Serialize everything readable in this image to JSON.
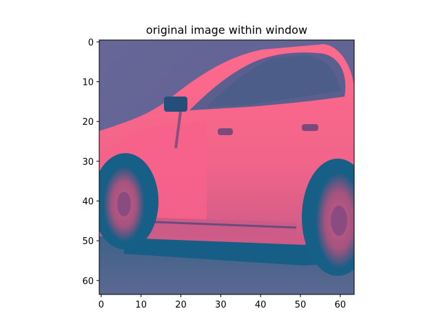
{
  "title": "original image within window",
  "image": {
    "subject": "pink car side view",
    "colors": {
      "pink": "#ff5f86",
      "dark_teal": "#0e5f86",
      "slate": "#52648f",
      "purple_grey": "#6a6797"
    }
  },
  "axes": {
    "x_ticks": [
      "0",
      "10",
      "20",
      "30",
      "40",
      "50",
      "60"
    ],
    "y_ticks": [
      "0",
      "10",
      "20",
      "30",
      "40",
      "50",
      "60"
    ],
    "xlim": [
      -0.5,
      63.5
    ],
    "ylim": [
      63.5,
      -0.5
    ],
    "tick_values": [
      0,
      10,
      20,
      30,
      40,
      50,
      60
    ]
  }
}
